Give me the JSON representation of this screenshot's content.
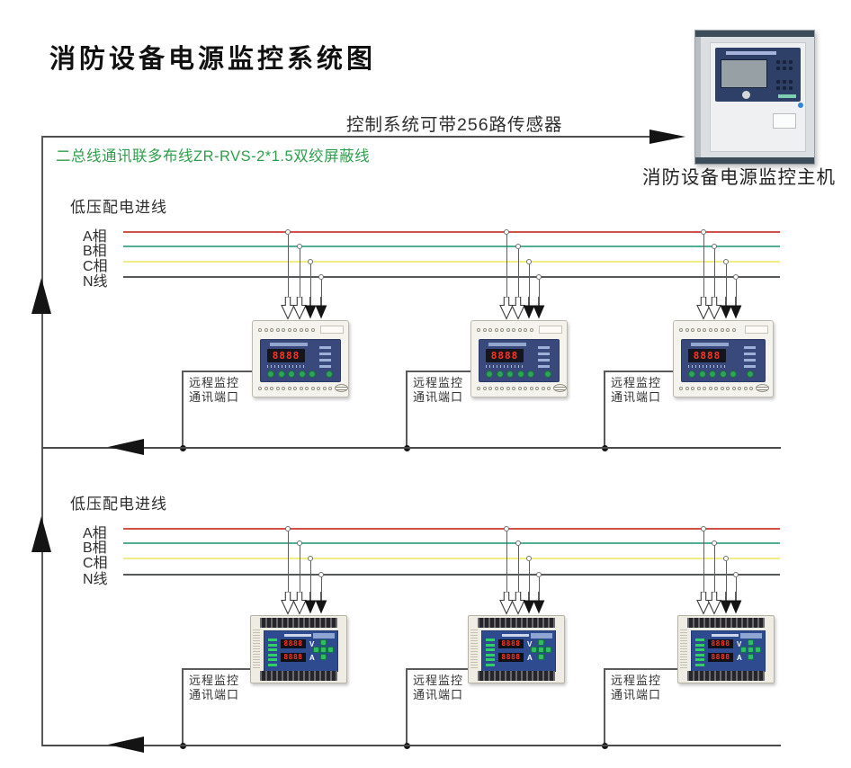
{
  "title": "消防设备电源监控系统图",
  "annotations": {
    "sensor_capacity_note": "控制系统可带256路传感器",
    "bus_wiring_label": "二总线通讯联多布线ZR-RVS-2*1.5双绞屏蔽线",
    "host_label": "消防设备电源监控主机"
  },
  "port_label": [
    "远程监控",
    "通讯端口"
  ],
  "rows": [
    {
      "heading": "低压配电进线",
      "phases": [
        "A相",
        "B相",
        "C相",
        "N线"
      ]
    },
    {
      "heading": "低压配电进线",
      "phases": [
        "A相",
        "B相",
        "C相",
        "N线"
      ]
    }
  ],
  "phase_colors": [
    "#cf5148",
    "#53ae96",
    "#f0ec87",
    "#57585a"
  ],
  "module_display": {
    "row1_digits": "8888",
    "row2_volts": "8888",
    "row2_amps": "8888",
    "volt_unit": "V",
    "amp_unit": "A"
  },
  "colors": {
    "wire": "#4f4f4f",
    "green_text": "#2f9e4c",
    "arrow": "#141414"
  }
}
